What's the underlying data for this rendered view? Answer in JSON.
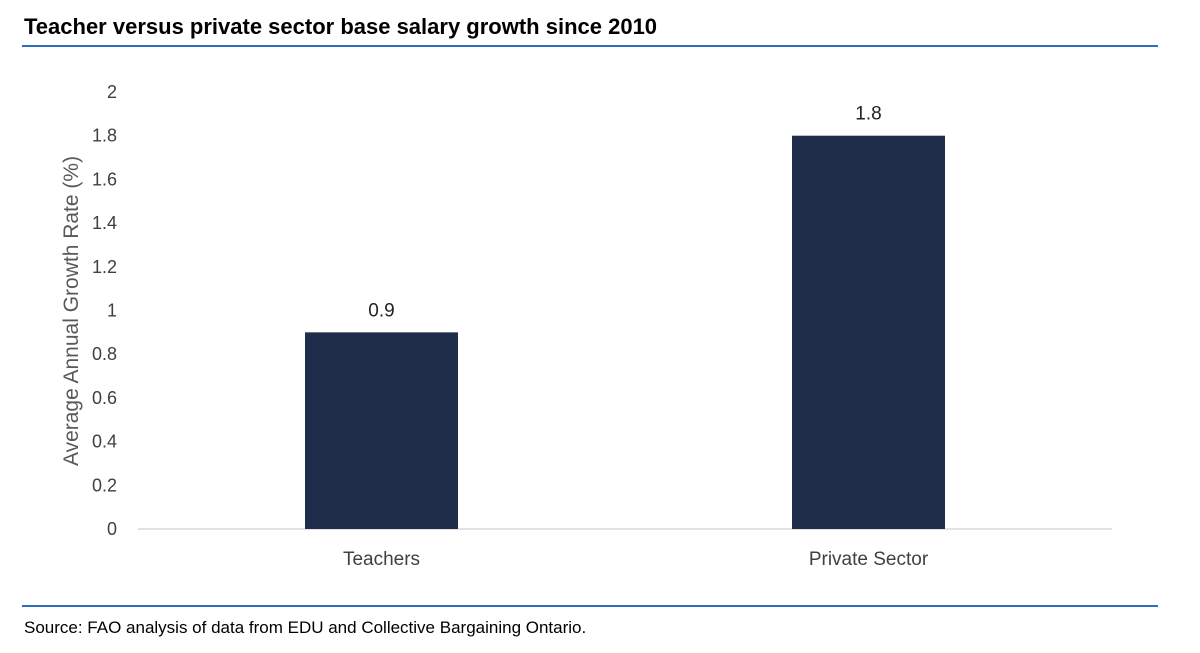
{
  "chart_data": {
    "type": "bar",
    "title": "Teacher versus private sector base salary growth since 2010",
    "categories": [
      "Teachers",
      "Private Sector"
    ],
    "values": [
      0.9,
      1.8
    ],
    "data_labels": [
      "0.9",
      "1.8"
    ],
    "xlabel": "",
    "ylabel": "Average Annual Growth Rate (%)",
    "ylim": [
      0,
      2
    ],
    "yticks": [
      0,
      0.2,
      0.4,
      0.6,
      0.8,
      1,
      1.2,
      1.4,
      1.6,
      1.8,
      2
    ],
    "ytick_labels": [
      "0",
      "0.2",
      "0.4",
      "0.6",
      "0.8",
      "1",
      "1.2",
      "1.4",
      "1.6",
      "1.8",
      "2"
    ],
    "grid": false,
    "legend": "none",
    "bar_color": "#1f2d4a",
    "source": "Source: FAO analysis of data from EDU and Collective Bargaining Ontario."
  },
  "colors": {
    "rule": "#2a6fb8",
    "bar": "#1f2d4a",
    "axis_line": "#d9d9d9"
  }
}
